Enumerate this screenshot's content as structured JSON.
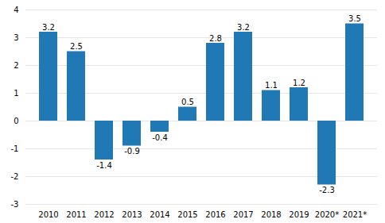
{
  "chart_data": {
    "type": "bar",
    "categories": [
      "2010",
      "2011",
      "2012",
      "2013",
      "2014",
      "2015",
      "2016",
      "2017",
      "2018",
      "2019",
      "2020*",
      "2021*"
    ],
    "values": [
      3.2,
      2.5,
      -1.4,
      -0.9,
      -0.4,
      0.5,
      2.8,
      3.2,
      1.1,
      1.2,
      -2.3,
      3.5
    ],
    "color": "#2078b4",
    "ylim": [
      -3,
      4
    ],
    "yticks": [
      -3,
      -2,
      -1,
      0,
      1,
      2,
      3,
      4
    ],
    "grid": true,
    "data_labels": true
  }
}
